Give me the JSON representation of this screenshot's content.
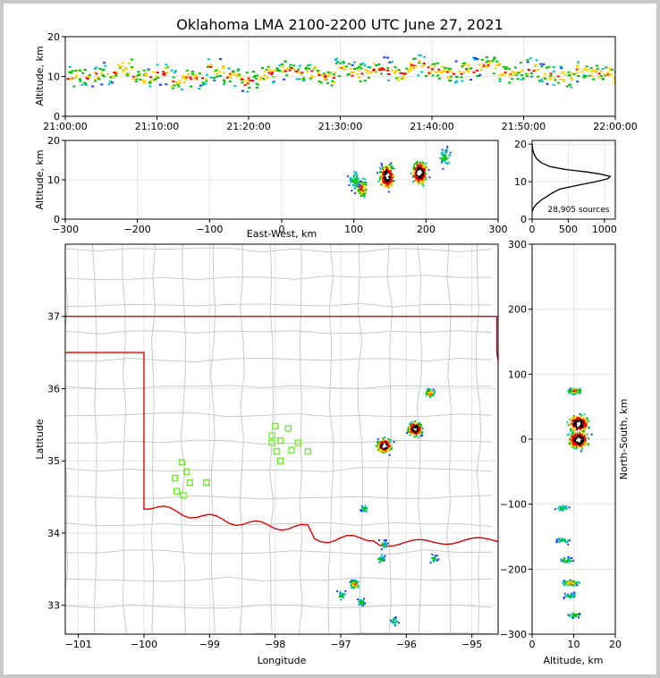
{
  "title": "Oklahoma LMA 2100-2200 UTC June 27, 2021",
  "colors": {
    "cold": "#1a3aff",
    "mid1": "#00c0c0",
    "mid2": "#00c000",
    "warm": "#ffd000",
    "hot": "#ff0000",
    "core": "#000000",
    "peak": "#ffffff",
    "border": "#e00000",
    "county": "#c9c9c9",
    "station": "#66ee22",
    "background": "#ffffff"
  },
  "chart_data": [
    {
      "panel": "time-height",
      "type": "heatmap",
      "ylabel": "Altitude, km",
      "xlabel": "",
      "xticks": [
        "21:00:00",
        "21:10:00",
        "21:20:00",
        "21:30:00",
        "21:40:00",
        "21:50:00",
        "22:00:00"
      ],
      "yticks": [
        0,
        10,
        20
      ],
      "xlim_minutes": [
        0,
        60
      ],
      "ylim": [
        0,
        20
      ],
      "grid": true,
      "sources_minutes_altitude": [
        [
          1,
          10
        ],
        [
          3,
          11
        ],
        [
          5,
          12
        ],
        [
          7,
          10
        ],
        [
          9,
          11
        ],
        [
          11,
          9
        ],
        [
          13,
          10
        ],
        [
          15,
          12
        ],
        [
          17,
          10
        ],
        [
          19,
          9
        ],
        [
          21,
          11
        ],
        [
          23,
          12
        ],
        [
          25,
          11
        ],
        [
          27,
          10
        ],
        [
          29,
          12
        ],
        [
          31,
          11
        ],
        [
          33,
          12
        ],
        [
          35,
          11
        ],
        [
          37,
          13
        ],
        [
          39,
          12
        ],
        [
          41,
          11
        ],
        [
          43,
          12
        ],
        [
          45,
          13
        ],
        [
          47,
          11
        ],
        [
          49,
          12
        ],
        [
          51,
          11
        ],
        [
          53,
          10
        ],
        [
          55,
          12
        ],
        [
          57,
          11
        ],
        [
          59,
          10
        ]
      ]
    },
    {
      "panel": "east-west-altitude",
      "type": "heatmap",
      "xlabel": "East-West, km",
      "ylabel": "Altitude, km",
      "xticks": [
        -300,
        -200,
        -100,
        0,
        100,
        200,
        300
      ],
      "yticks": [
        0,
        10,
        20
      ],
      "xlim": [
        -300,
        300
      ],
      "ylim": [
        0,
        20
      ],
      "grid": true,
      "cells": [
        {
          "x": 145,
          "z": 11,
          "intensity": "core"
        },
        {
          "x": 190,
          "z": 12,
          "intensity": "core"
        },
        {
          "x": 110,
          "z": 8,
          "intensity": "mid"
        },
        {
          "x": 100,
          "z": 10,
          "intensity": "low"
        },
        {
          "x": 225,
          "z": 16,
          "intensity": "low"
        }
      ]
    },
    {
      "panel": "altitude-histogram",
      "type": "line",
      "annotation": "28,905 sources",
      "xticks": [
        0,
        500,
        1000
      ],
      "yticks": [
        0,
        10,
        20
      ],
      "xlim": [
        0,
        1150
      ],
      "ylim": [
        0,
        21
      ],
      "profile": [
        [
          0,
          2
        ],
        [
          20,
          3
        ],
        [
          60,
          4
        ],
        [
          120,
          5
        ],
        [
          200,
          6
        ],
        [
          280,
          7
        ],
        [
          380,
          8
        ],
        [
          520,
          8.6
        ],
        [
          700,
          9.3
        ],
        [
          880,
          10
        ],
        [
          1050,
          10.8
        ],
        [
          1080,
          11.4
        ],
        [
          950,
          12
        ],
        [
          750,
          12.6
        ],
        [
          450,
          13.3
        ],
        [
          250,
          14
        ],
        [
          130,
          15
        ],
        [
          70,
          16
        ],
        [
          35,
          17
        ],
        [
          15,
          18
        ],
        [
          5,
          19
        ],
        [
          0,
          20
        ]
      ]
    },
    {
      "panel": "plan-view",
      "type": "scatter",
      "xlabel": "Longitude",
      "ylabel": "Latitude",
      "xticks": [
        -101,
        -100,
        -99,
        -98,
        -97,
        -96,
        -95
      ],
      "yticks": [
        33,
        34,
        35,
        36,
        37
      ],
      "xlim": [
        -101.2,
        -94.6
      ],
      "ylim": [
        32.6,
        38
      ],
      "grid": true,
      "storm_cells": [
        {
          "lon": -96.35,
          "lat": 35.22,
          "intensity": "core"
        },
        {
          "lon": -95.88,
          "lat": 35.45,
          "intensity": "core"
        },
        {
          "lon": -95.65,
          "lat": 35.95,
          "intensity": "mid"
        },
        {
          "lon": -96.65,
          "lat": 34.35,
          "intensity": "low"
        },
        {
          "lon": -96.35,
          "lat": 33.85,
          "intensity": "low"
        },
        {
          "lon": -96.4,
          "lat": 33.65,
          "intensity": "low"
        },
        {
          "lon": -96.8,
          "lat": 33.3,
          "intensity": "mid"
        },
        {
          "lon": -96.7,
          "lat": 33.05,
          "intensity": "low"
        },
        {
          "lon": -97.0,
          "lat": 33.15,
          "intensity": "low"
        },
        {
          "lon": -96.2,
          "lat": 32.8,
          "intensity": "low"
        },
        {
          "lon": -95.6,
          "lat": 33.65,
          "intensity": "low"
        }
      ],
      "stations": [
        [
          -98.0,
          35.48
        ],
        [
          -97.8,
          35.45
        ],
        [
          -98.05,
          35.35
        ],
        [
          -97.92,
          35.28
        ],
        [
          -98.05,
          35.25
        ],
        [
          -97.65,
          35.25
        ],
        [
          -97.75,
          35.15
        ],
        [
          -97.98,
          35.13
        ],
        [
          -97.5,
          35.13
        ],
        [
          -97.92,
          35.0
        ],
        [
          -99.42,
          34.98
        ],
        [
          -99.35,
          34.85
        ],
        [
          -99.53,
          34.76
        ],
        [
          -99.3,
          34.7
        ],
        [
          -99.05,
          34.7
        ],
        [
          -99.5,
          34.58
        ],
        [
          -99.4,
          34.52
        ]
      ]
    },
    {
      "panel": "altitude-north-south",
      "type": "heatmap",
      "xlabel": "Altitude, km",
      "ylabel": "North-South, km",
      "xticks": [
        0,
        10,
        20
      ],
      "yticks": [
        -300,
        -200,
        -100,
        0,
        100,
        200,
        300
      ],
      "xlim": [
        0,
        20
      ],
      "ylim": [
        -300,
        300
      ],
      "grid": true,
      "cells": [
        {
          "z": 11,
          "y": 25,
          "intensity": "core"
        },
        {
          "z": 11,
          "y": 0,
          "intensity": "core"
        },
        {
          "z": 10,
          "y": 75,
          "intensity": "mid"
        },
        {
          "z": 7,
          "y": -105,
          "intensity": "low"
        },
        {
          "z": 7,
          "y": -155,
          "intensity": "low"
        },
        {
          "z": 8,
          "y": -185,
          "intensity": "low"
        },
        {
          "z": 9,
          "y": -220,
          "intensity": "mid"
        },
        {
          "z": 9,
          "y": -240,
          "intensity": "low"
        },
        {
          "z": 10,
          "y": -270,
          "intensity": "low"
        }
      ]
    }
  ]
}
